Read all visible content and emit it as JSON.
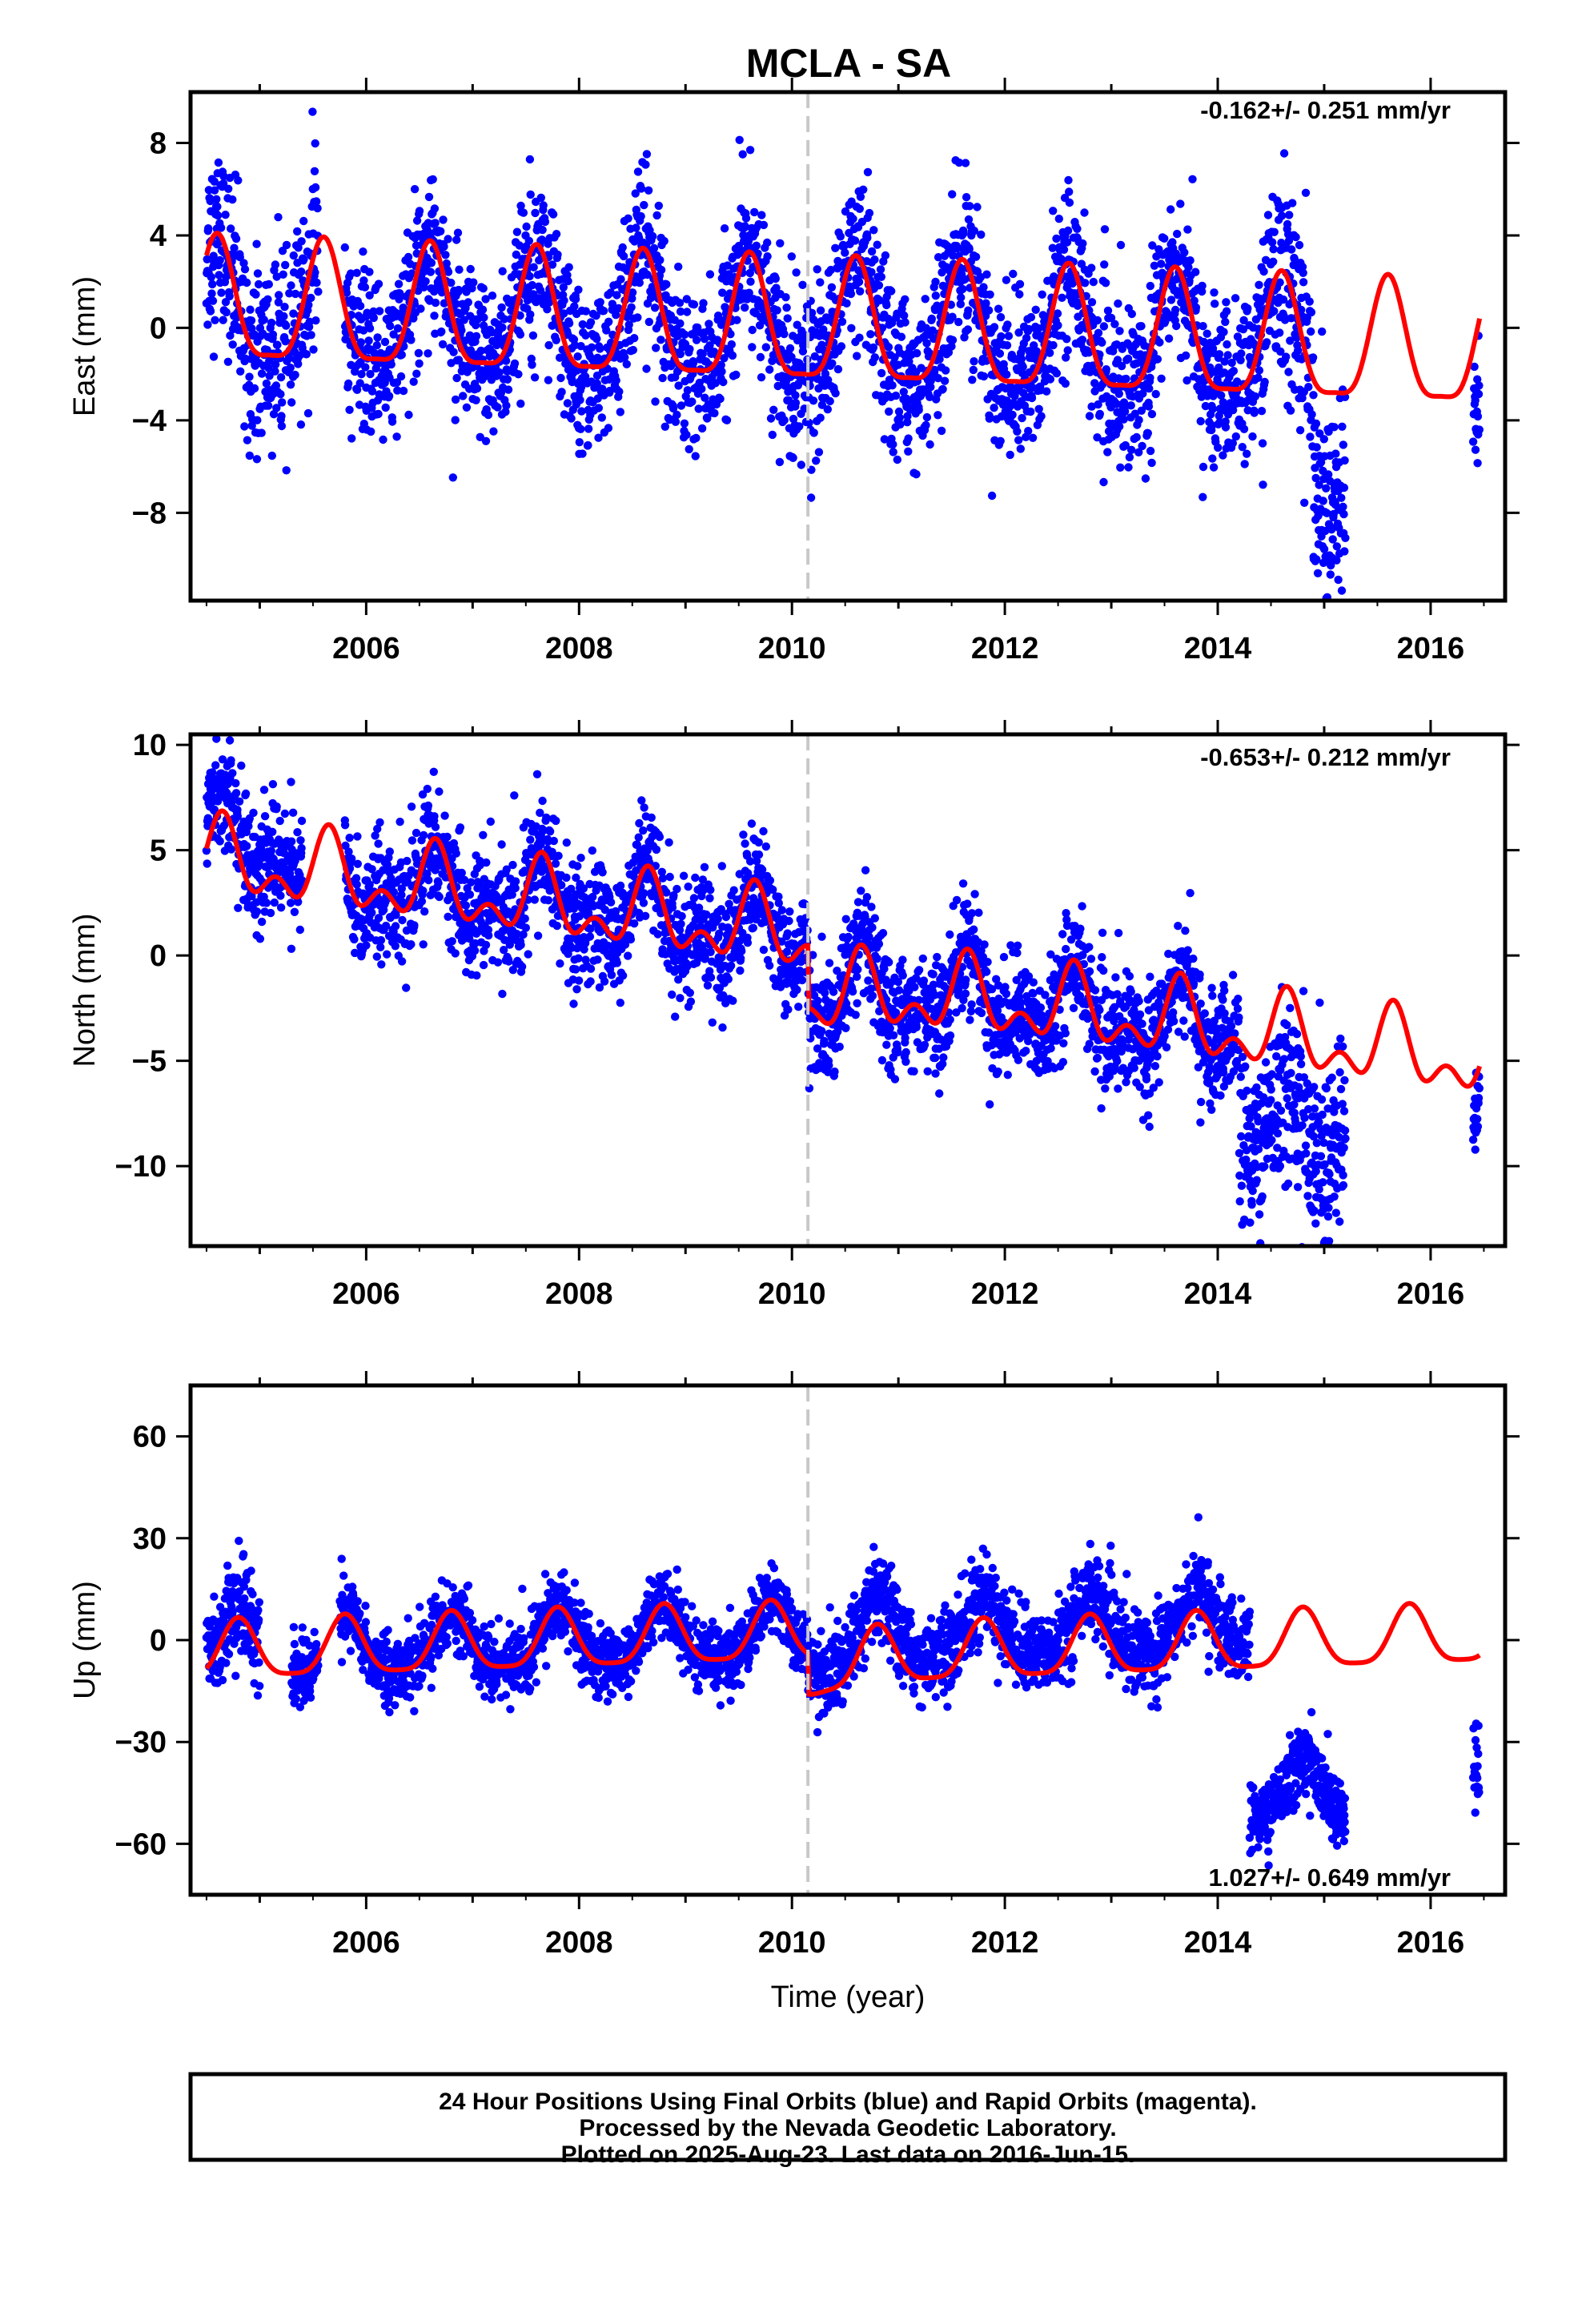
{
  "title": "MCLA - SA",
  "footer": {
    "lines": [
      "24 Hour Positions Using Final Orbits (blue) and Rapid Orbits (magenta).",
      "Processed by the Nevada Geodetic Laboratory.",
      "Plotted on 2025-Aug-23. Last data on 2016-Jun-15."
    ]
  },
  "colors": {
    "data": "#0000ff",
    "model": "#ff0000",
    "equipment_change": "#c8c8c8",
    "axes": "#000000"
  },
  "chart_data": [
    {
      "type": "scatter",
      "ylabel": "East (mm)",
      "xlabel": "",
      "rate_label": "-0.162+/- 0.251 mm/yr",
      "xlim": [
        2004.35,
        2016.7
      ],
      "ylim": [
        -11.8,
        10.2
      ],
      "xticks": [
        2006,
        2008,
        2010,
        2012,
        2014,
        2016
      ],
      "yticks": [
        8,
        4,
        0,
        -4,
        -8
      ],
      "ytick_labels": [
        "8",
        "4",
        "0",
        "−4",
        "−8"
      ],
      "equipment_change_x": 2010.15,
      "model": {
        "offset": 0.8,
        "rate": -0.162,
        "ref_year": 2004.6,
        "annual_amp": 2.6,
        "annual_phase_year": 2004.6,
        "semiannual_amp": 0.7,
        "semiannual_phase_year": 2004.6,
        "ppt_start": 2010.15,
        "ppt_offset": 0.0,
        "ppt_tau": 1.0
      },
      "data_segments": [
        {
          "start": 2004.5,
          "end": 2005.55,
          "scatter": 2.0
        },
        {
          "start": 2005.8,
          "end": 2010.1,
          "scatter": 1.7
        },
        {
          "start": 2010.1,
          "end": 2014.4,
          "scatter": 1.7
        },
        {
          "start": 2014.4,
          "end": 2014.9,
          "scatter": 2.2
        },
        {
          "start": 2014.9,
          "end": 2015.2,
          "scatter": 2.0,
          "bias": -5.0
        },
        {
          "start": 2016.4,
          "end": 2016.46,
          "scatter": 1.2,
          "bias": -3.0
        }
      ]
    },
    {
      "type": "scatter",
      "ylabel": "North (mm)",
      "xlabel": "",
      "rate_label": "-0.653+/- 0.212 mm/yr",
      "xlim": [
        2004.35,
        2016.7
      ],
      "ylim": [
        -13.8,
        10.5
      ],
      "xticks": [
        2006,
        2008,
        2010,
        2012,
        2014,
        2016
      ],
      "yticks": [
        10,
        5,
        0,
        -5,
        -10
      ],
      "ytick_labels": [
        "10",
        "5",
        "0",
        "−5",
        "−10"
      ],
      "equipment_change_x": 2010.15,
      "model": {
        "offset": 4.5,
        "rate": -0.653,
        "ref_year": 2004.6,
        "annual_amp": 1.4,
        "annual_phase_year": 2004.65,
        "semiannual_amp": 1.0,
        "semiannual_phase_year": 2004.65,
        "ppt_start": 2010.15,
        "ppt_offset": -3.0,
        "ppt_tau": 0.8
      },
      "data_segments": [
        {
          "start": 2004.5,
          "end": 2005.4,
          "scatter": 1.3,
          "bias": 1.0
        },
        {
          "start": 2005.8,
          "end": 2010.1,
          "scatter": 1.4
        },
        {
          "start": 2010.1,
          "end": 2014.2,
          "scatter": 1.3
        },
        {
          "start": 2014.2,
          "end": 2015.2,
          "scatter": 2.0,
          "bias": -4.5
        },
        {
          "start": 2016.4,
          "end": 2016.46,
          "scatter": 0.8,
          "bias": -1.5
        }
      ]
    },
    {
      "type": "scatter",
      "ylabel": "Up (mm)",
      "xlabel": "Time (year)",
      "rate_label": "1.027+/- 0.649 mm/yr",
      "xlim": [
        2004.35,
        2016.7
      ],
      "ylim": [
        -75,
        75
      ],
      "xticks": [
        2006,
        2008,
        2010,
        2012,
        2014,
        2016
      ],
      "yticks": [
        60,
        30,
        0,
        -30,
        -60
      ],
      "ytick_labels": [
        "60",
        "30",
        "0",
        "−30",
        "−60"
      ],
      "equipment_change_x": 2010.15,
      "model": {
        "offset": -4.0,
        "rate": 1.027,
        "ref_year": 2004.6,
        "annual_amp": 8.5,
        "annual_phase_year": 2004.8,
        "semiannual_amp": 2.0,
        "semiannual_phase_year": 2004.8,
        "ppt_start": 2010.15,
        "ppt_offset": -12.0,
        "ppt_tau": 0.4
      },
      "data_segments": [
        {
          "start": 2004.5,
          "end": 2005.0,
          "scatter": 7.0,
          "bias": 3.0
        },
        {
          "start": 2005.3,
          "end": 2005.55,
          "scatter": 5.0
        },
        {
          "start": 2005.75,
          "end": 2010.1,
          "scatter": 5.0
        },
        {
          "start": 2010.1,
          "end": 2014.3,
          "scatter": 6.0,
          "bias": 6.0
        },
        {
          "start": 2014.3,
          "end": 2015.2,
          "scatter": 5.0,
          "bias": -45.0
        },
        {
          "start": 2016.4,
          "end": 2016.46,
          "scatter": 6.0,
          "bias": -35.0
        }
      ]
    }
  ]
}
